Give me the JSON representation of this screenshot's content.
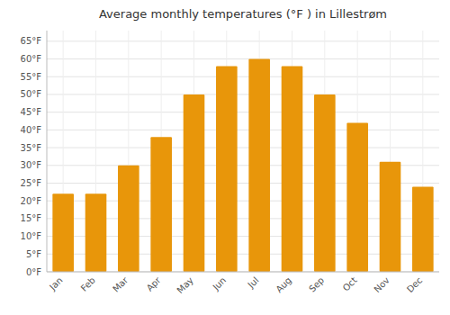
{
  "chart_data": {
    "type": "bar",
    "title": "Average monthly temperatures (°F ) in Lillestrøm",
    "categories": [
      "Jan",
      "Feb",
      "Mar",
      "Apr",
      "May",
      "Jun",
      "Jul",
      "Aug",
      "Sep",
      "Oct",
      "Nov",
      "Dec"
    ],
    "values": [
      22,
      22,
      30,
      38,
      50,
      58,
      60,
      58,
      50,
      42,
      31,
      24
    ],
    "color": "#E8960A",
    "ylim": [
      0,
      68
    ],
    "yticks": [
      {
        "value": 0,
        "label": "0°F"
      },
      {
        "value": 5,
        "label": "5°F"
      },
      {
        "value": 10,
        "label": "10°F"
      },
      {
        "value": 15,
        "label": "15°F"
      },
      {
        "value": 20,
        "label": "20°F"
      },
      {
        "value": 25,
        "label": "25°F"
      },
      {
        "value": 30,
        "label": "30°F"
      },
      {
        "value": 35,
        "label": "35°F"
      },
      {
        "value": 40,
        "label": "40°F"
      },
      {
        "value": 45,
        "label": "45°F"
      },
      {
        "value": 50,
        "label": "50°F"
      },
      {
        "value": 55,
        "label": "55°F"
      },
      {
        "value": 60,
        "label": "60°F"
      },
      {
        "value": 65,
        "label": "65°F"
      }
    ],
    "grid": true
  }
}
